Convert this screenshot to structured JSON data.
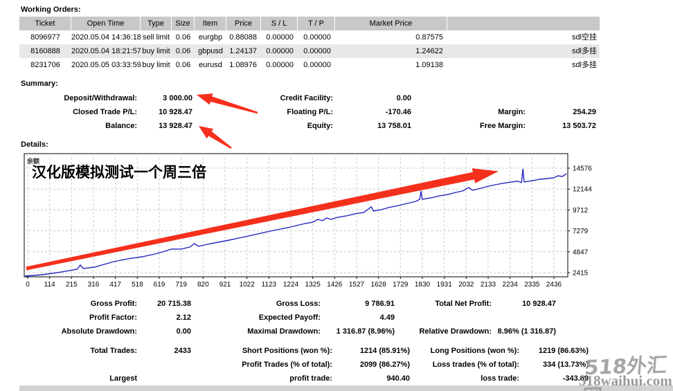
{
  "colors": {
    "accent_red": "#f4301d",
    "balance_line_blue": "#2424c0",
    "table_header_bg": "#c8c8c8",
    "row_stripe_bg": "#e8e8e8",
    "grid_gray": "#c9c9c9",
    "watermark_gray": "#979797"
  },
  "working_orders": {
    "title": "Working Orders:",
    "columns": [
      "Ticket",
      "Open Time",
      "Type",
      "Size",
      "Item",
      "Price",
      "S / L",
      "T / P",
      "Market Price",
      ""
    ],
    "rows": [
      {
        "ticket": "8096977",
        "open_time": "2020.05.04 14:36:18",
        "type": "sell limit",
        "size": "0.06",
        "item": "eurgbp",
        "price": "0.88088",
        "sl": "0.00000",
        "tp": "0.00000",
        "market_price": "0.87575",
        "comment": "sdl空挂"
      },
      {
        "ticket": "8160888",
        "open_time": "2020.05.04 18:21:57",
        "type": "buy limit",
        "size": "0.06",
        "item": "gbpusd",
        "price": "1.24137",
        "sl": "0.00000",
        "tp": "0.00000",
        "market_price": "1.24622",
        "comment": "sdl多挂"
      },
      {
        "ticket": "8231706",
        "open_time": "2020.05.05 03:33:59",
        "type": "buy limit",
        "size": "0.06",
        "item": "eurusd",
        "price": "1.08976",
        "sl": "0.00000",
        "tp": "0.00000",
        "market_price": "1.09138",
        "comment": "sdl多挂"
      }
    ]
  },
  "summary": {
    "title": "Summary:",
    "deposit_withdrawal_label": "Deposit/Withdrawal:",
    "deposit_withdrawal": "3 000.00",
    "closed_trade_pl_label": "Closed Trade P/L:",
    "closed_trade_pl": "10 928.47",
    "balance_label": "Balance:",
    "balance": "13 928.47",
    "credit_facility_label": "Credit Facility:",
    "credit_facility": "0.00",
    "floating_pl_label": "Floating P/L:",
    "floating_pl": "-170.46",
    "equity_label": "Equity:",
    "equity": "13 758.01",
    "margin_label": "Margin:",
    "margin": "254.29",
    "free_margin_label": "Free Margin:",
    "free_margin": "13 503.72"
  },
  "details": {
    "title": "Details:"
  },
  "chart_data": {
    "type": "line",
    "legend": "余额",
    "annotation_title": "汉化版模拟测试一个周三倍",
    "grid": true,
    "legend_position": "top-left",
    "xlabel": "",
    "ylabel": "",
    "x_ticks": [
      0,
      114,
      215,
      316,
      417,
      518,
      619,
      719,
      820,
      921,
      1022,
      1123,
      1224,
      1325,
      1426,
      1527,
      1628,
      1729,
      1830,
      1931,
      2032,
      2133,
      2234,
      2335,
      2436
    ],
    "y_ticks": [
      14576,
      12144,
      9712,
      7279,
      4847,
      2415
    ],
    "xlim": [
      0,
      2494
    ],
    "ylim": [
      1930,
      16270
    ],
    "series": [
      {
        "name": "余额 (Balance)",
        "color": "#2424c0",
        "points": [
          [
            0,
            2010
          ],
          [
            80,
            2170
          ],
          [
            170,
            2500
          ],
          [
            240,
            2820
          ],
          [
            255,
            3300
          ],
          [
            270,
            2900
          ],
          [
            320,
            3060
          ],
          [
            365,
            3380
          ],
          [
            410,
            3700
          ],
          [
            475,
            4030
          ],
          [
            540,
            4270
          ],
          [
            600,
            4590
          ],
          [
            655,
            4990
          ],
          [
            675,
            5150
          ],
          [
            720,
            5160
          ],
          [
            760,
            5400
          ],
          [
            780,
            5800
          ],
          [
            800,
            5480
          ],
          [
            840,
            5720
          ],
          [
            890,
            5960
          ],
          [
            940,
            6200
          ],
          [
            1000,
            6520
          ],
          [
            1060,
            6850
          ],
          [
            1115,
            7170
          ],
          [
            1160,
            7410
          ],
          [
            1210,
            7650
          ],
          [
            1250,
            7890
          ],
          [
            1290,
            8130
          ],
          [
            1325,
            8290
          ],
          [
            1350,
            8620
          ],
          [
            1370,
            8460
          ],
          [
            1390,
            8780
          ],
          [
            1410,
            8620
          ],
          [
            1440,
            8860
          ],
          [
            1480,
            9020
          ],
          [
            1520,
            9260
          ],
          [
            1560,
            9420
          ],
          [
            1595,
            10070
          ],
          [
            1605,
            9580
          ],
          [
            1640,
            9740
          ],
          [
            1675,
            9990
          ],
          [
            1720,
            10230
          ],
          [
            1760,
            10470
          ],
          [
            1800,
            10710
          ],
          [
            1818,
            10950
          ],
          [
            1824,
            11920
          ],
          [
            1830,
            10950
          ],
          [
            1870,
            11110
          ],
          [
            1910,
            11360
          ],
          [
            1950,
            11520
          ],
          [
            1985,
            11760
          ],
          [
            2015,
            11920
          ],
          [
            2045,
            12320
          ],
          [
            2060,
            12000
          ],
          [
            2100,
            12240
          ],
          [
            2135,
            12480
          ],
          [
            2165,
            12640
          ],
          [
            2200,
            12810
          ],
          [
            2240,
            12970
          ],
          [
            2270,
            13050
          ],
          [
            2287,
            12900
          ],
          [
            2293,
            14500
          ],
          [
            2299,
            12970
          ],
          [
            2340,
            13130
          ],
          [
            2370,
            13290
          ],
          [
            2405,
            13370
          ],
          [
            2435,
            13450
          ],
          [
            2455,
            13690
          ],
          [
            2475,
            13610
          ],
          [
            2494,
            13928
          ]
        ]
      }
    ]
  },
  "stats": {
    "rows": [
      {
        "c1l": "Gross Profit:",
        "c1v": "20 715.38",
        "c2l": "Gross Loss:",
        "c2v": "9 786.91",
        "c3l": "Total Net Profit:",
        "c3v": "10 928.47"
      },
      {
        "c1l": "Profit Factor:",
        "c1v": "2.12",
        "c2l": "Expected Payoff:",
        "c2v": "4.49"
      },
      {
        "c1l": "Absolute Drawdown:",
        "c1v": "0.00",
        "c2l": "Maximal Drawdown:",
        "c2v": "1 316.87 (8.96%)",
        "c3l": "Relative Drawdown:",
        "c3v": "8.96% (1 316.87)"
      },
      {
        "c1l": "Total Trades:",
        "c1v": "2433",
        "c2l": "Short Positions (won %):",
        "c2v": "1214 (85.91%)",
        "c3l": "Long Positions (won %):",
        "c3v": "1219 (86.63%)"
      },
      {
        "c2l": "Profit Trades (% of total):",
        "c2v": "2099 (86.27%)",
        "c3l": "Loss trades (% of total):",
        "c3v": "334 (13.73%)"
      },
      {
        "c1l": "Largest",
        "c2l": "profit trade:",
        "c2v": "940.40",
        "c3l": "loss trade:",
        "c3v": "-343.69"
      }
    ]
  },
  "watermark": {
    "line1": "518外汇网",
    "line2": "518waihui.com"
  }
}
